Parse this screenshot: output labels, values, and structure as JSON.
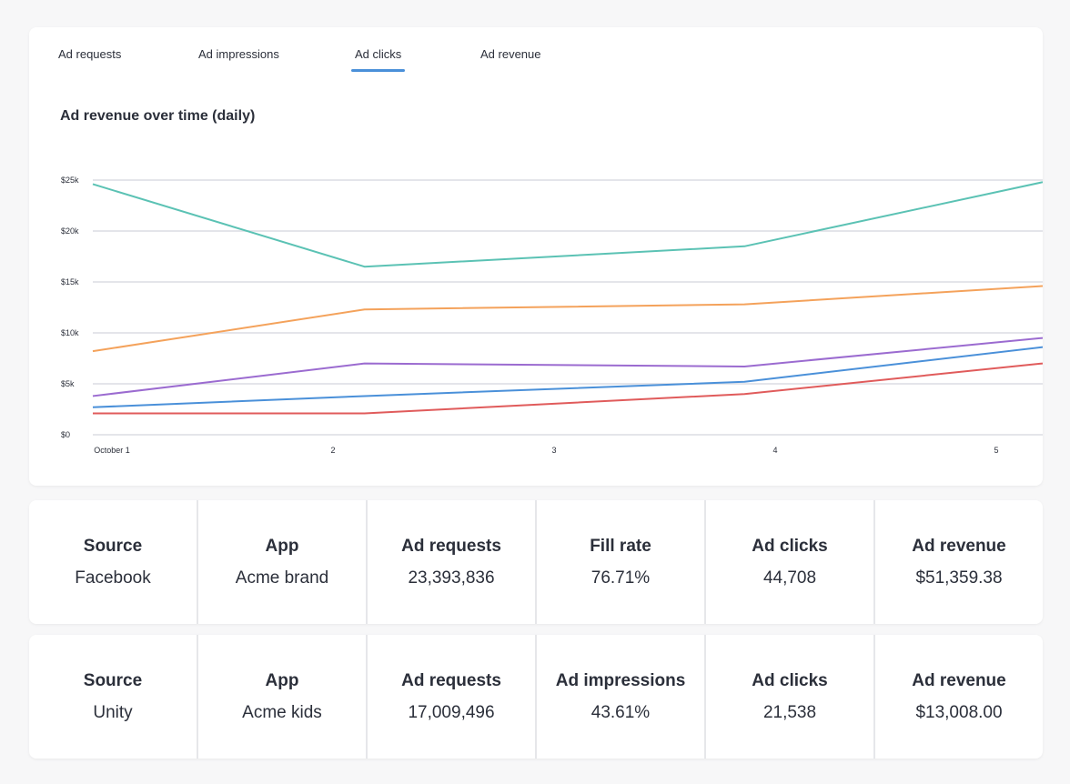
{
  "tabs": [
    "Ad requests",
    "Ad impressions",
    "Ad clicks",
    "Ad revenue"
  ],
  "active_tab": "Ad clicks",
  "chart_data": {
    "type": "line",
    "title": "Ad revenue over time (daily)",
    "x_ticks": [
      "October 1",
      "2",
      "3",
      "4",
      "5"
    ],
    "y_ticks": [
      "$0",
      "$5k",
      "$10k",
      "$15k",
      "$20k",
      "$25k"
    ],
    "ylim": [
      0,
      25000
    ],
    "xlim": [
      0,
      4.3
    ],
    "grid": true,
    "series": [
      {
        "color": "#5bc2b4",
        "x": [
          0,
          1.23,
          2.95,
          4.3
        ],
        "values": [
          24600,
          16500,
          18500,
          24800
        ]
      },
      {
        "color": "#f4a25b",
        "x": [
          0,
          1.23,
          2.95,
          4.3
        ],
        "values": [
          8200,
          12300,
          12800,
          14600
        ]
      },
      {
        "color": "#9b6bd0",
        "x": [
          0,
          1.23,
          2.95,
          4.3
        ],
        "values": [
          3800,
          7000,
          6700,
          9500
        ]
      },
      {
        "color": "#4a90d9",
        "x": [
          0,
          1.23,
          2.95,
          4.3
        ],
        "values": [
          2700,
          3800,
          5200,
          8600
        ]
      },
      {
        "color": "#e05b5b",
        "x": [
          0,
          1.23,
          2.95,
          4.3
        ],
        "values": [
          2100,
          2100,
          4000,
          7000
        ]
      }
    ]
  },
  "summaries": [
    {
      "cells": [
        {
          "label": "Source",
          "value": "Facebook"
        },
        {
          "label": "App",
          "value": "Acme brand"
        },
        {
          "label": "Ad requests",
          "value": "23,393,836"
        },
        {
          "label": "Fill rate",
          "value": "76.71%"
        },
        {
          "label": "Ad clicks",
          "value": "44,708"
        },
        {
          "label": "Ad revenue",
          "value": "$51,359.38"
        }
      ]
    },
    {
      "cells": [
        {
          "label": "Source",
          "value": "Unity"
        },
        {
          "label": "App",
          "value": "Acme kids"
        },
        {
          "label": "Ad requests",
          "value": "17,009,496"
        },
        {
          "label": "Ad impressions",
          "value": "43.61%"
        },
        {
          "label": "Ad clicks",
          "value": "21,538"
        },
        {
          "label": "Ad revenue",
          "value": "$13,008.00"
        }
      ]
    }
  ]
}
